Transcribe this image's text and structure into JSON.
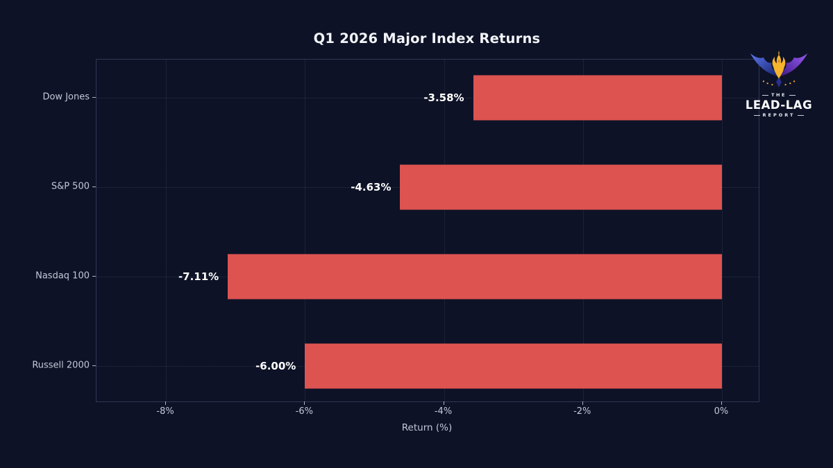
{
  "page": {
    "background": "#0d1226"
  },
  "logo": {
    "the": "THE",
    "name": "LEAD-LAG",
    "report": "REPORT"
  },
  "chart_data": {
    "type": "bar",
    "orientation": "horizontal",
    "title": "Q1 2026 Major Index Returns",
    "categories": [
      "Dow Jones",
      "S&P 500",
      "Nasdaq 100",
      "Russell 2000"
    ],
    "values": [
      -3.58,
      -4.63,
      -7.11,
      -6.0
    ],
    "value_labels": [
      "-3.58%",
      "-4.63%",
      "-7.11%",
      "-6.00%"
    ],
    "xlabel": "Return (%)",
    "xlim": [
      -9.0,
      0.53
    ],
    "xticks": [
      -8,
      -6,
      -4,
      -2,
      0
    ],
    "xtick_labels": [
      "-8%",
      "-6%",
      "-4%",
      "-2%",
      "0%"
    ],
    "bar_color": "#dd5350",
    "text_color": "#c4c9d8",
    "grid": true,
    "legend": false
  }
}
